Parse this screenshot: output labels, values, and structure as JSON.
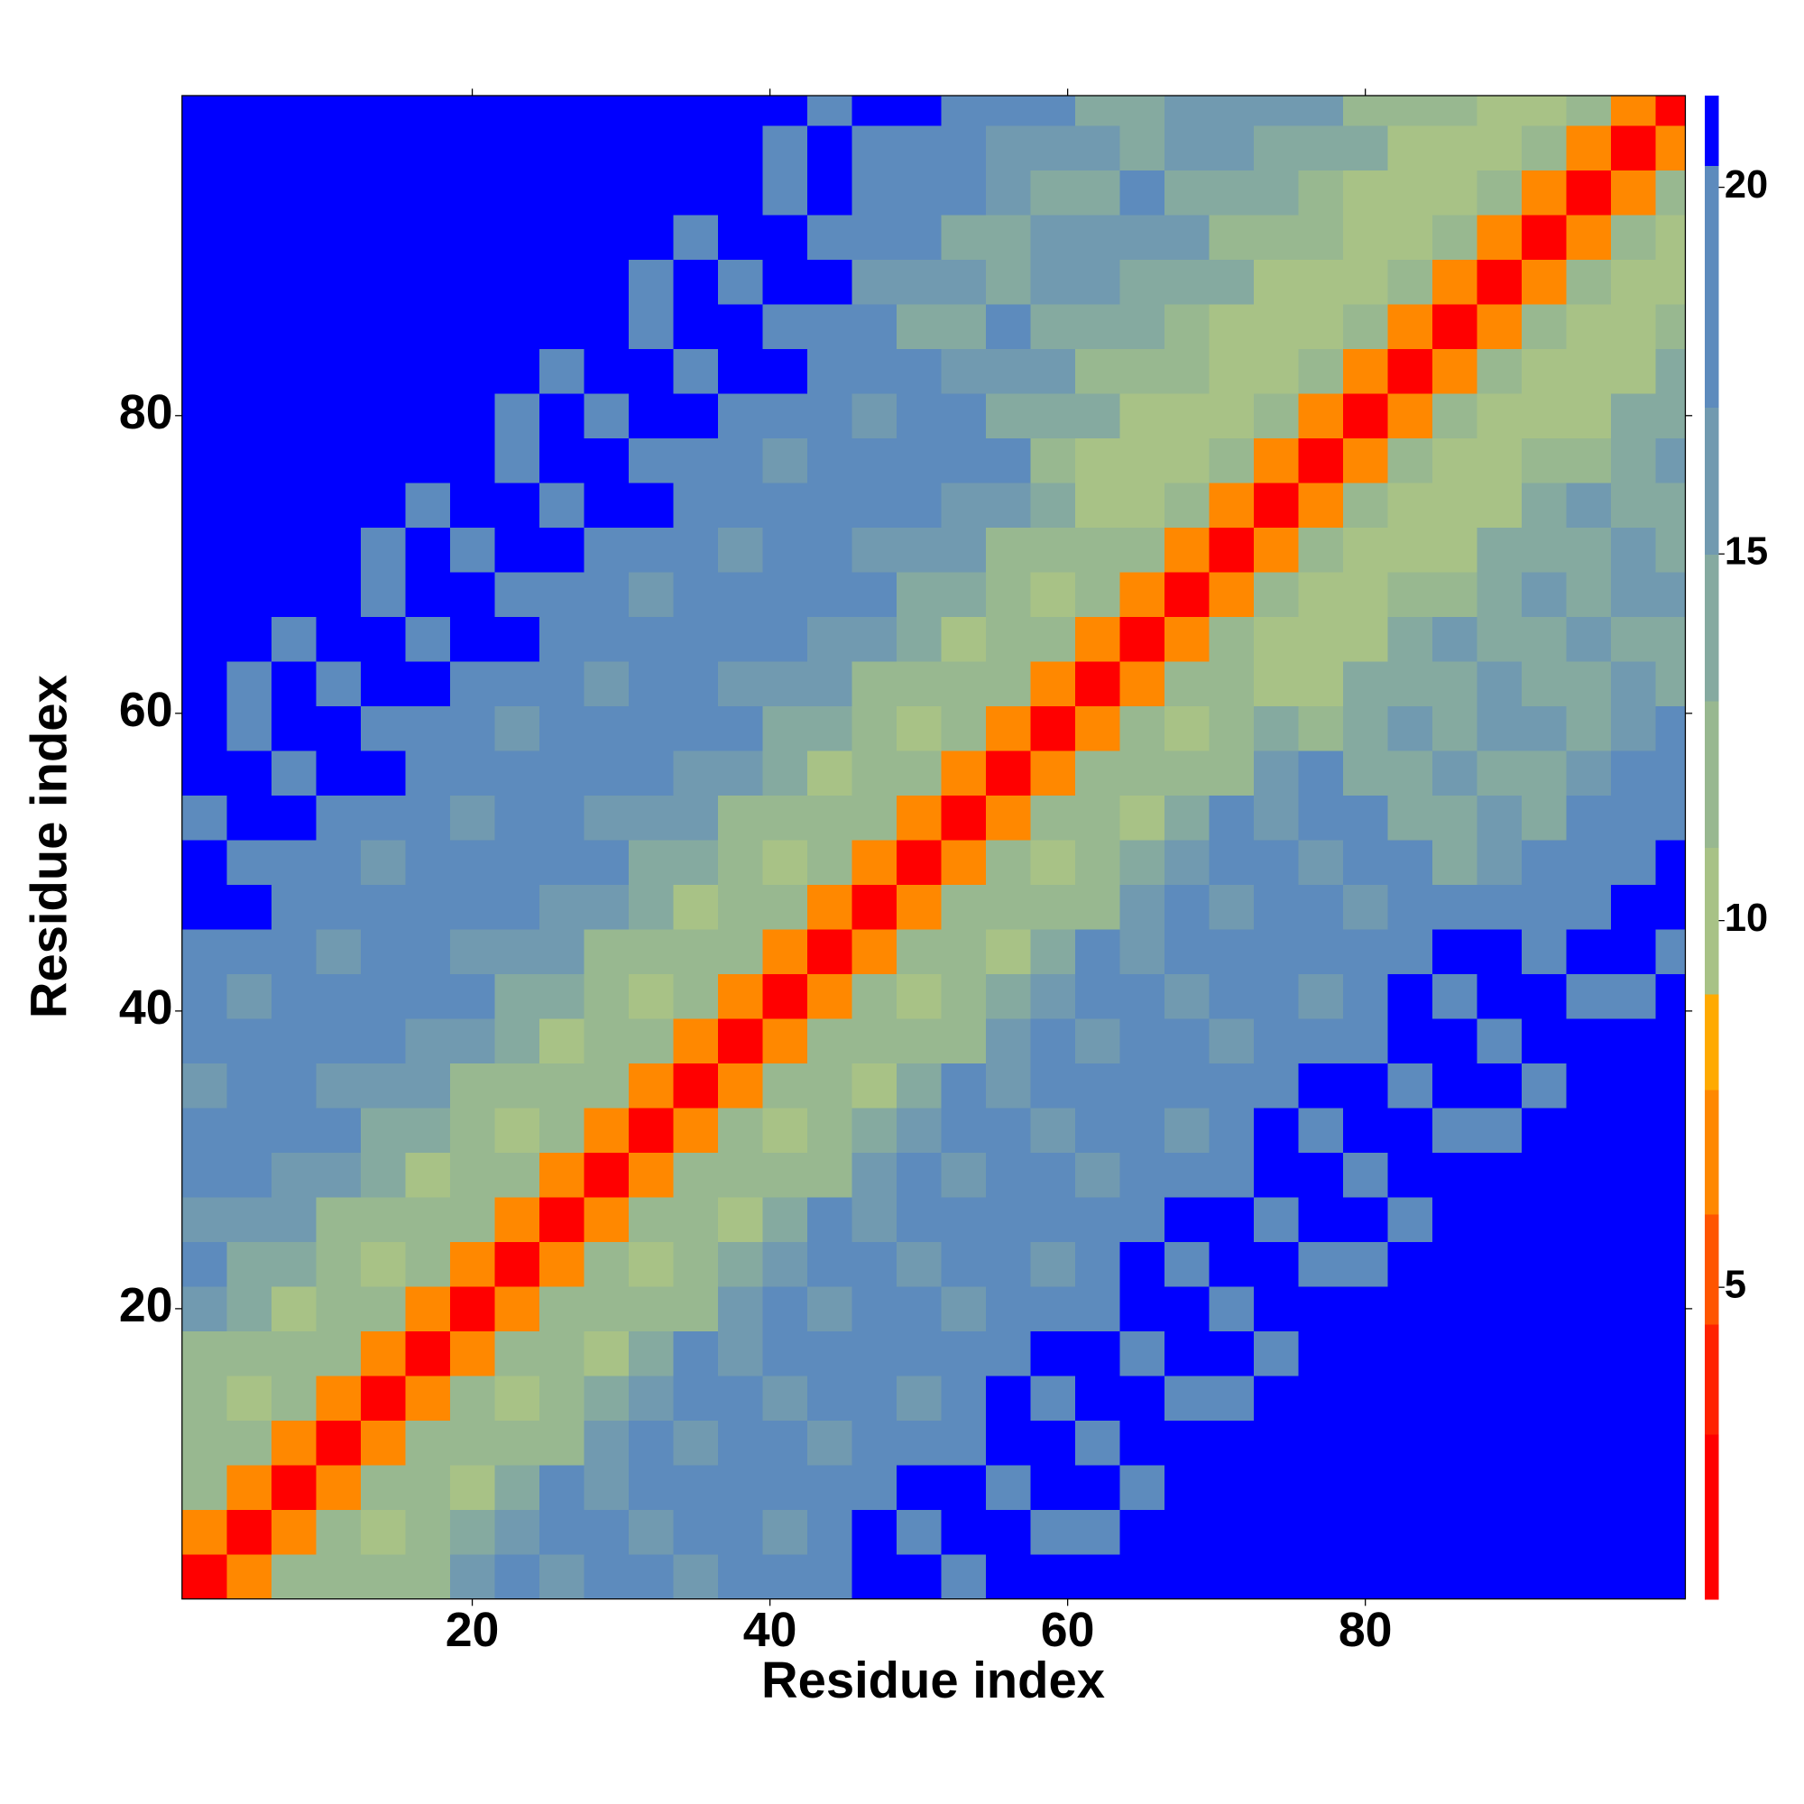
{
  "chart_data": {
    "type": "heatmap",
    "xlabel": "Residue index",
    "ylabel": "Residue index",
    "xlim": [
      0.5,
      101.5
    ],
    "ylim": [
      0.5,
      101.5
    ],
    "xticks": [
      20,
      40,
      60,
      80
    ],
    "yticks": [
      20,
      40,
      60,
      80
    ],
    "xbins": [
      0.5,
      3.5,
      6.5,
      9.5,
      12.5,
      15.5,
      18.5,
      21.5,
      24.5,
      27.5,
      30.5,
      33.5,
      36.5,
      39.5,
      42.5,
      45.5,
      48.5,
      51.5,
      54.5,
      57.5,
      60.5,
      63.5,
      66.5,
      69.5,
      72.5,
      75.5,
      78.5,
      81.5,
      84.5,
      87.5,
      90.5,
      93.5,
      96.5,
      99.5,
      101.5
    ],
    "ybins": [
      0.5,
      3.5,
      6.5,
      9.5,
      12.5,
      15.5,
      18.5,
      21.5,
      24.5,
      27.5,
      30.5,
      33.5,
      36.5,
      39.5,
      42.5,
      45.5,
      48.5,
      51.5,
      54.5,
      57.5,
      60.5,
      63.5,
      66.5,
      69.5,
      72.5,
      75.5,
      78.5,
      81.5,
      84.5,
      87.5,
      90.5,
      93.5,
      96.5,
      99.5,
      101.5
    ],
    "clim": [
      0.75,
      21.25
    ],
    "cticks": [
      5,
      10,
      15,
      20
    ],
    "levels": [
      3,
      4.5,
      6,
      7.7,
      9,
      11,
      13,
      15,
      17,
      20.3
    ],
    "colors": [
      "#ff0000",
      "#ff2200",
      "#ff5500",
      "#ff8800",
      "#ffaa00",
      "#a8c286",
      "#98b890",
      "#85aaa0",
      "#719ab0",
      "#5d8bbd",
      "#0000ff"
    ],
    "z": [
      [
        2,
        7,
        11,
        11,
        12,
        12,
        16,
        18,
        16,
        17,
        19,
        16,
        17,
        19,
        20,
        21,
        21,
        20,
        21,
        21,
        21,
        21,
        21,
        21,
        21,
        21,
        21,
        21,
        21,
        21,
        21,
        21,
        21,
        21
      ],
      [
        7,
        2,
        7,
        11,
        10,
        11,
        14,
        15,
        17,
        18,
        16,
        18,
        18,
        16,
        18,
        21,
        20,
        21,
        21,
        20,
        20,
        21,
        21,
        21,
        21,
        21,
        21,
        21,
        21,
        21,
        21,
        21,
        21,
        21
      ],
      [
        11,
        7,
        2,
        7,
        11,
        12,
        10,
        13,
        17,
        16,
        17,
        18,
        17,
        17,
        18,
        17,
        21,
        21,
        20,
        21,
        21,
        19,
        21,
        21,
        21,
        21,
        21,
        21,
        21,
        21,
        21,
        21,
        21,
        21
      ],
      [
        11,
        11,
        7,
        2,
        7,
        11,
        11,
        12,
        12,
        16,
        18,
        16,
        17,
        19,
        16,
        17,
        19,
        20,
        21,
        21,
        20,
        21,
        21,
        21,
        21,
        21,
        21,
        21,
        21,
        21,
        21,
        21,
        21,
        21
      ],
      [
        12,
        10,
        11,
        7,
        2,
        7,
        11,
        10,
        11,
        14,
        15,
        17,
        18,
        16,
        18,
        18,
        16,
        18,
        21,
        20,
        21,
        21,
        20,
        20,
        21,
        21,
        21,
        21,
        21,
        21,
        21,
        21,
        21,
        21
      ],
      [
        12,
        11,
        12,
        11,
        7,
        2,
        7,
        11,
        12,
        10,
        13,
        17,
        16,
        17,
        18,
        17,
        17,
        18,
        17,
        21,
        21,
        20,
        21,
        21,
        19,
        21,
        21,
        21,
        21,
        21,
        21,
        21,
        21,
        21
      ],
      [
        15,
        14,
        10,
        11,
        11,
        7,
        2,
        7,
        11,
        11,
        12,
        12,
        16,
        18,
        16,
        17,
        19,
        16,
        17,
        19,
        20,
        21,
        21,
        20,
        21,
        21,
        21,
        21,
        21,
        21,
        21,
        21,
        21,
        21
      ],
      [
        17,
        14,
        13,
        12,
        10,
        11,
        7,
        2,
        7,
        11,
        10,
        11,
        14,
        15,
        17,
        18,
        16,
        18,
        18,
        16,
        18,
        21,
        20,
        21,
        21,
        20,
        20,
        21,
        21,
        21,
        21,
        21,
        21,
        21
      ],
      [
        16,
        16,
        16,
        12,
        11,
        12,
        11,
        7,
        2,
        7,
        11,
        12,
        10,
        13,
        17,
        16,
        17,
        18,
        17,
        17,
        18,
        17,
        21,
        21,
        20,
        21,
        21,
        19,
        21,
        21,
        21,
        21,
        21,
        21
      ],
      [
        18,
        18,
        15,
        15,
        14,
        10,
        11,
        11,
        7,
        2,
        7,
        11,
        11,
        12,
        12,
        16,
        18,
        16,
        17,
        19,
        16,
        17,
        19,
        20,
        21,
        21,
        20,
        21,
        21,
        21,
        21,
        21,
        21,
        21
      ],
      [
        20,
        17,
        17,
        17,
        14,
        13,
        12,
        10,
        11,
        7,
        2,
        7,
        11,
        10,
        11,
        14,
        15,
        17,
        18,
        16,
        18,
        18,
        16,
        18,
        21,
        20,
        21,
        21,
        20,
        20,
        21,
        21,
        21,
        21
      ],
      [
        16,
        19,
        19,
        16,
        16,
        16,
        12,
        11,
        12,
        11,
        7,
        2,
        7,
        11,
        12,
        10,
        13,
        17,
        16,
        17,
        18,
        17,
        17,
        18,
        17,
        21,
        21,
        20,
        21,
        21,
        19,
        21,
        21,
        21
      ],
      [
        17,
        18,
        18,
        18,
        18,
        15,
        15,
        14,
        10,
        11,
        11,
        7,
        2,
        7,
        11,
        11,
        12,
        12,
        16,
        18,
        16,
        17,
        19,
        16,
        17,
        19,
        20,
        21,
        21,
        20,
        21,
        21,
        21,
        21
      ],
      [
        19,
        16,
        17,
        20,
        17,
        17,
        17,
        14,
        13,
        12,
        10,
        11,
        7,
        2,
        7,
        11,
        10,
        11,
        14,
        15,
        17,
        18,
        16,
        18,
        18,
        16,
        18,
        21,
        20,
        21,
        21,
        20,
        20,
        21
      ],
      [
        19,
        18,
        18,
        16,
        19,
        19,
        16,
        16,
        16,
        12,
        11,
        12,
        11,
        7,
        2,
        7,
        11,
        12,
        10,
        13,
        17,
        16,
        17,
        18,
        17,
        17,
        18,
        17,
        21,
        21,
        17,
        21,
        21,
        19
      ],
      [
        21,
        21,
        17,
        17,
        18,
        18,
        18,
        18,
        15,
        15,
        14,
        10,
        11,
        11,
        7,
        2,
        7,
        11,
        11,
        12,
        12,
        16,
        18,
        16,
        17,
        19,
        16,
        17,
        19,
        17,
        19,
        19,
        21,
        21
      ],
      [
        21,
        20,
        20,
        19,
        16,
        17,
        20,
        17,
        17,
        17,
        14,
        13,
        12,
        10,
        11,
        7,
        2,
        7,
        11,
        10,
        11,
        14,
        15,
        17,
        18,
        16,
        18,
        18,
        13,
        15,
        19,
        18,
        18,
        21
      ],
      [
        20,
        21,
        21,
        19,
        18,
        18,
        16,
        19,
        19,
        16,
        16,
        16,
        12,
        11,
        12,
        11,
        7,
        2,
        7,
        11,
        12,
        10,
        13,
        17,
        16,
        17,
        18,
        14,
        14,
        15,
        14,
        18,
        20,
        17
      ],
      [
        21,
        21,
        20,
        21,
        21,
        17,
        17,
        18,
        18,
        18,
        18,
        15,
        15,
        14,
        10,
        11,
        11,
        7,
        2,
        7,
        11,
        11,
        12,
        12,
        16,
        18,
        13,
        14,
        16,
        13,
        14,
        16,
        17,
        19
      ],
      [
        21,
        20,
        21,
        21,
        20,
        20,
        19,
        16,
        17,
        20,
        17,
        17,
        17,
        14,
        13,
        12,
        10,
        11,
        7,
        2,
        7,
        11,
        10,
        11,
        14,
        12,
        14,
        15,
        13,
        15,
        15,
        13,
        15,
        19
      ],
      [
        21,
        20,
        21,
        20,
        21,
        21,
        19,
        18,
        18,
        16,
        19,
        19,
        16,
        16,
        16,
        12,
        11,
        12,
        11,
        7,
        2,
        7,
        11,
        12,
        9,
        10,
        14,
        13,
        14,
        15,
        14,
        14,
        15,
        14
      ],
      [
        21,
        21,
        19,
        21,
        21,
        20,
        21,
        21,
        17,
        17,
        18,
        18,
        18,
        18,
        15,
        15,
        14,
        10,
        11,
        11,
        7,
        2,
        7,
        11,
        9,
        9,
        9,
        13,
        15,
        13,
        14,
        16,
        13,
        14
      ],
      [
        21,
        21,
        21,
        21,
        20,
        21,
        21,
        20,
        20,
        19,
        16,
        17,
        20,
        17,
        17,
        17,
        14,
        13,
        12,
        10,
        11,
        7,
        2,
        7,
        11,
        9,
        9,
        11,
        12,
        14,
        15,
        13,
        15,
        15
      ],
      [
        21,
        21,
        21,
        21,
        20,
        21,
        20,
        21,
        21,
        19,
        18,
        18,
        16,
        19,
        19,
        16,
        16,
        16,
        12,
        11,
        12,
        11,
        7,
        2,
        7,
        11,
        9,
        9,
        10,
        14,
        13,
        14,
        15,
        14
      ],
      [
        21,
        21,
        21,
        21,
        21,
        19,
        21,
        21,
        20,
        21,
        21,
        17,
        17,
        18,
        18,
        18,
        18,
        15,
        15,
        14,
        9,
        9,
        11,
        7,
        2,
        7,
        11,
        9,
        9,
        9,
        13,
        15,
        13,
        14
      ],
      [
        21,
        21,
        21,
        21,
        21,
        21,
        21,
        20,
        21,
        21,
        20,
        20,
        19,
        16,
        17,
        20,
        17,
        17,
        17,
        11,
        10,
        9,
        9,
        11,
        7,
        2,
        7,
        11,
        9,
        9,
        11,
        12,
        14,
        15
      ],
      [
        21,
        21,
        21,
        21,
        21,
        21,
        21,
        20,
        21,
        20,
        21,
        21,
        19,
        18,
        18,
        16,
        19,
        19,
        13,
        13,
        13,
        9,
        9,
        9,
        11,
        7,
        2,
        7,
        11,
        9,
        9,
        10,
        14,
        13
      ],
      [
        21,
        21,
        21,
        21,
        21,
        21,
        21,
        21,
        19,
        21,
        21,
        20,
        21,
        21,
        17,
        17,
        18,
        15,
        15,
        15,
        12,
        12,
        11,
        9,
        9,
        11,
        7,
        2,
        7,
        11,
        9,
        9,
        9,
        13
      ],
      [
        21,
        21,
        21,
        21,
        21,
        21,
        21,
        21,
        21,
        21,
        20,
        21,
        21,
        20,
        20,
        19,
        13,
        14,
        17,
        14,
        14,
        14,
        11,
        10,
        9,
        9,
        11,
        7,
        2,
        7,
        11,
        9,
        9,
        11
      ],
      [
        21,
        21,
        21,
        21,
        21,
        21,
        21,
        21,
        21,
        21,
        20,
        21,
        20,
        21,
        21,
        16,
        15,
        15,
        13,
        16,
        16,
        13,
        13,
        13,
        9,
        9,
        9,
        11,
        7,
        2,
        7,
        11,
        9,
        9
      ],
      [
        21,
        21,
        21,
        21,
        21,
        21,
        21,
        21,
        21,
        21,
        21,
        19,
        21,
        21,
        17,
        18,
        18,
        14,
        14,
        15,
        15,
        15,
        15,
        12,
        12,
        11,
        9,
        9,
        11,
        7,
        2,
        7,
        11,
        9
      ],
      [
        21,
        21,
        21,
        21,
        21,
        21,
        21,
        21,
        21,
        21,
        21,
        21,
        21,
        20,
        21,
        19,
        17,
        17,
        16,
        13,
        14,
        17,
        14,
        14,
        14,
        11,
        10,
        9,
        9,
        11,
        7,
        2,
        7,
        11
      ],
      [
        21,
        21,
        21,
        21,
        21,
        21,
        21,
        21,
        21,
        21,
        21,
        21,
        21,
        20,
        21,
        20,
        18,
        19,
        16,
        15,
        15,
        13,
        16,
        16,
        13,
        13,
        13,
        9,
        9,
        9,
        11,
        7,
        2,
        7
      ],
      [
        21,
        21,
        21,
        21,
        21,
        21,
        21,
        21,
        21,
        21,
        21,
        21,
        21,
        21,
        19,
        21,
        21,
        17,
        18,
        18,
        14,
        14,
        15,
        15,
        15,
        15,
        12,
        12,
        11,
        9,
        9,
        11,
        7,
        2
      ]
    ]
  }
}
